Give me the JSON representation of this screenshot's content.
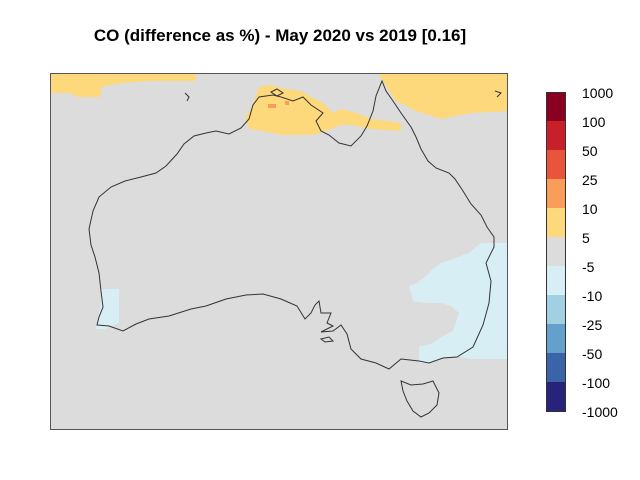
{
  "title": "CO (difference as %) - May 2020 vs 2019 [0.16]",
  "legend": {
    "labels": [
      "1000",
      "100",
      "50",
      "25",
      "10",
      "5",
      "-5",
      "-10",
      "-25",
      "-50",
      "-100",
      "-1000"
    ],
    "bins": [
      {
        "range": "100 to 1000",
        "color": "#8b0020"
      },
      {
        "range": "50 to 100",
        "color": "#c8202a"
      },
      {
        "range": "25 to 50",
        "color": "#e8553a"
      },
      {
        "range": "10 to 25",
        "color": "#f99d59"
      },
      {
        "range": "5 to 10",
        "color": "#fed97b"
      },
      {
        "range": "-5 to 5",
        "color": "#dcdcdc"
      },
      {
        "range": "-10 to -5",
        "color": "#d8eef5"
      },
      {
        "range": "-25 to -10",
        "color": "#a1d0e2"
      },
      {
        "range": "-50 to -25",
        "color": "#64a0cb"
      },
      {
        "range": "-100 to -50",
        "color": "#3b63a8"
      },
      {
        "range": "-1000 to -100",
        "color": "#27237a"
      }
    ]
  },
  "map": {
    "region": "Australia",
    "background_color": "#dcdcdc",
    "coastline_color": "#333333"
  }
}
